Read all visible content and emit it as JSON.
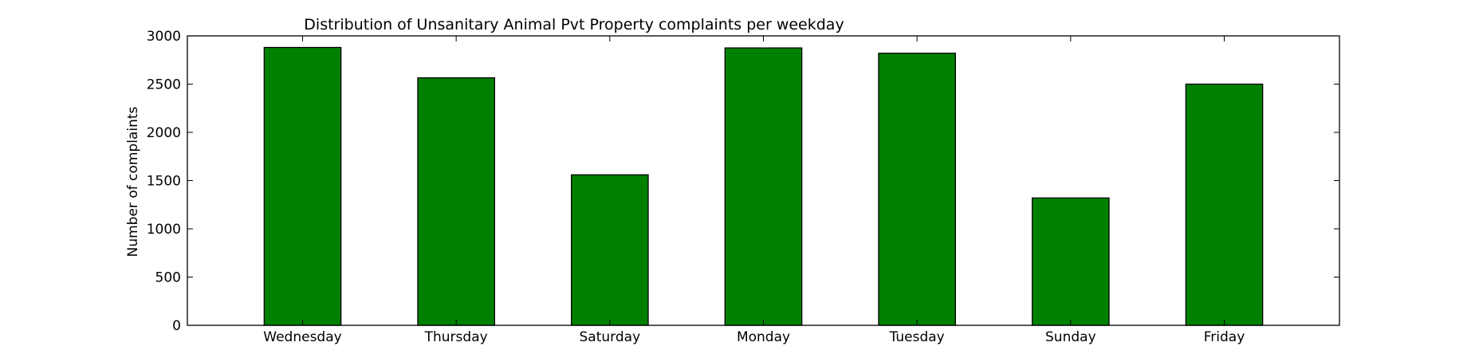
{
  "chart_data": {
    "type": "bar",
    "title": "Distribution of  Unsanitary Animal Pvt Property complaints per weekday",
    "xlabel": "",
    "ylabel": "Number of complaints",
    "categories": [
      "Wednesday",
      "Thursday",
      "Saturday",
      "Monday",
      "Tuesday",
      "Sunday",
      "Friday"
    ],
    "values": [
      2880,
      2565,
      1560,
      2875,
      2820,
      1320,
      2500
    ],
    "ylim": [
      0,
      3000
    ],
    "yticks": [
      0,
      500,
      1000,
      1500,
      2000,
      2500,
      3000
    ],
    "bar_color": "#008000",
    "edge_color": "#000000",
    "grid": false,
    "legend": "none"
  }
}
